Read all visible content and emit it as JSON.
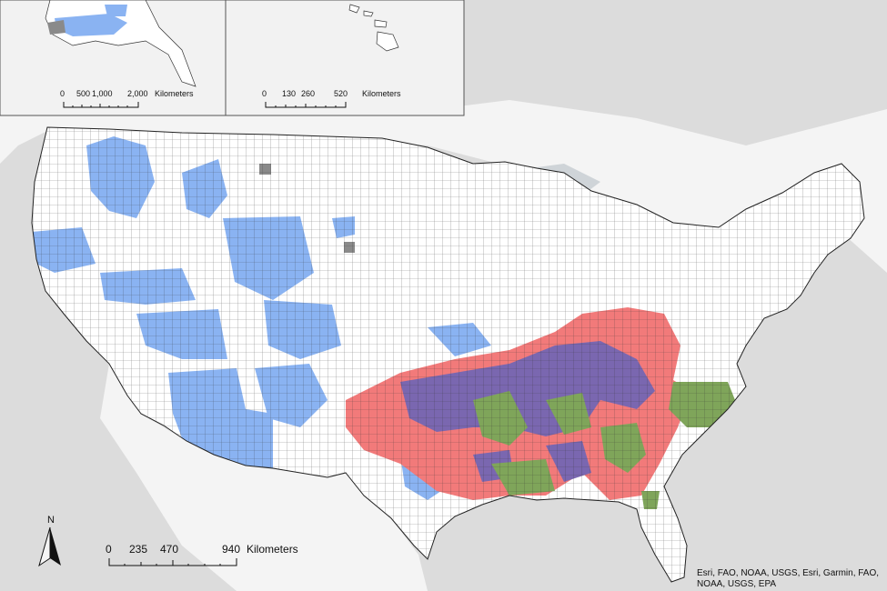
{
  "colors": {
    "ocean": "#dcdcdc",
    "land_outside": "#f4f4f4",
    "county_default": "#ffffff",
    "county_border": "#333333",
    "blue_cluster": "#8ab3f2",
    "red_cluster": "#f27a7a",
    "purple_cluster": "#7a67b0",
    "green_cluster": "#7fa55a",
    "gray_county": "#8a8a8a"
  },
  "north_arrow": {
    "label": "N"
  },
  "scale_main": {
    "ticks": [
      "0",
      "235",
      "470",
      "940"
    ],
    "unit": "Kilometers"
  },
  "scale_alaska": {
    "ticks": [
      "0",
      "500",
      "1,000",
      "2,000"
    ],
    "unit": "Kilometers"
  },
  "scale_hawaii": {
    "ticks": [
      "0",
      "130",
      "260",
      "520"
    ],
    "unit": "Kilometers"
  },
  "attribution": "Esri, FAO, NOAA, USGS, Esri, Garmin, FAO, NOAA, USGS, EPA"
}
